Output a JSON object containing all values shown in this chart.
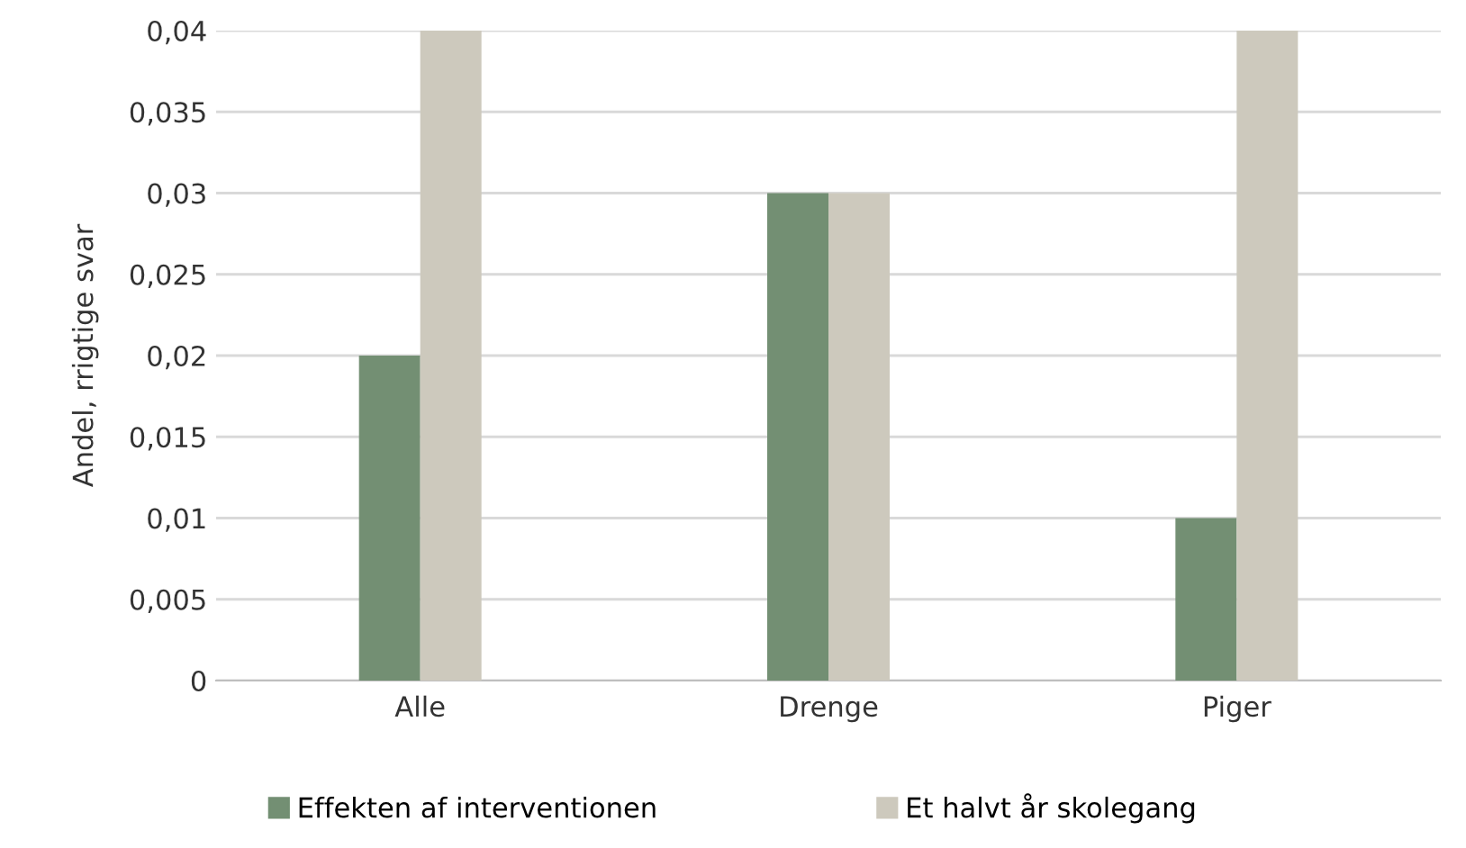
{
  "chart_data": {
    "type": "bar",
    "ylabel": "Andel, rrigtige svar",
    "categories": [
      "Alle",
      "Drenge",
      "Piger"
    ],
    "series": [
      {
        "name": "Effekten af interventionen",
        "color": "#738f73",
        "values": [
          0.02,
          0.03,
          0.01
        ]
      },
      {
        "name": "Et halvt år skolegang",
        "color": "#cdc9bd",
        "values": [
          0.04,
          0.03,
          0.04
        ]
      }
    ],
    "ylim": [
      0,
      0.04
    ],
    "yticks": [
      {
        "value": 0,
        "label": "0"
      },
      {
        "value": 0.005,
        "label": "0,005"
      },
      {
        "value": 0.01,
        "label": "0,01"
      },
      {
        "value": 0.015,
        "label": "0,015"
      },
      {
        "value": 0.02,
        "label": "0,02"
      },
      {
        "value": 0.025,
        "label": "0,025"
      },
      {
        "value": 0.03,
        "label": "0,03"
      },
      {
        "value": 0.035,
        "label": "0,035"
      },
      {
        "value": 0.04,
        "label": "0,04"
      }
    ],
    "grid": "y",
    "legend": "bottom"
  }
}
